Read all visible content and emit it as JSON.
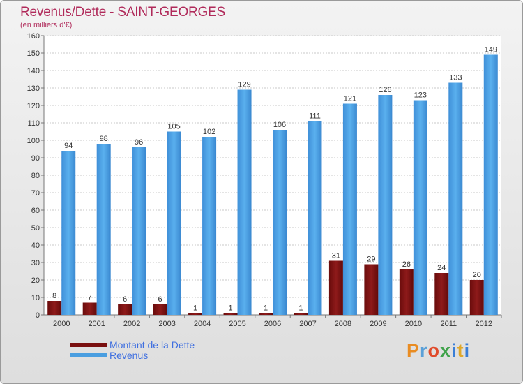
{
  "title": "Revenus/Dette - SAINT-GEORGES",
  "subtitle": "(en milliers d'€)",
  "brand": "Proxiti",
  "colors": {
    "dette": "#7a1010",
    "revenus": "#4a9ee0",
    "axis": "#777777",
    "grid": "#c8c8c8"
  },
  "chart_data": {
    "type": "bar",
    "title": "Revenus/Dette - SAINT-GEORGES",
    "ylabel": "(en milliers d'€)",
    "xlabel": "",
    "ylim": [
      0,
      160
    ],
    "yticks": [
      0,
      10,
      20,
      30,
      40,
      50,
      60,
      70,
      80,
      90,
      100,
      110,
      120,
      130,
      140,
      150,
      160
    ],
    "grid": true,
    "legend_position": "bottom-left",
    "categories": [
      "2000",
      "2001",
      "2002",
      "2003",
      "2004",
      "2005",
      "2006",
      "2007",
      "2008",
      "2009",
      "2010",
      "2011",
      "2012"
    ],
    "series": [
      {
        "name": "Montant de la Dette",
        "values": [
          8,
          7,
          6,
          6,
          1,
          1,
          1,
          1,
          31,
          29,
          26,
          24,
          20
        ]
      },
      {
        "name": "Revenus",
        "values": [
          94,
          98,
          96,
          105,
          102,
          129,
          106,
          111,
          121,
          126,
          123,
          133,
          149
        ]
      }
    ]
  }
}
